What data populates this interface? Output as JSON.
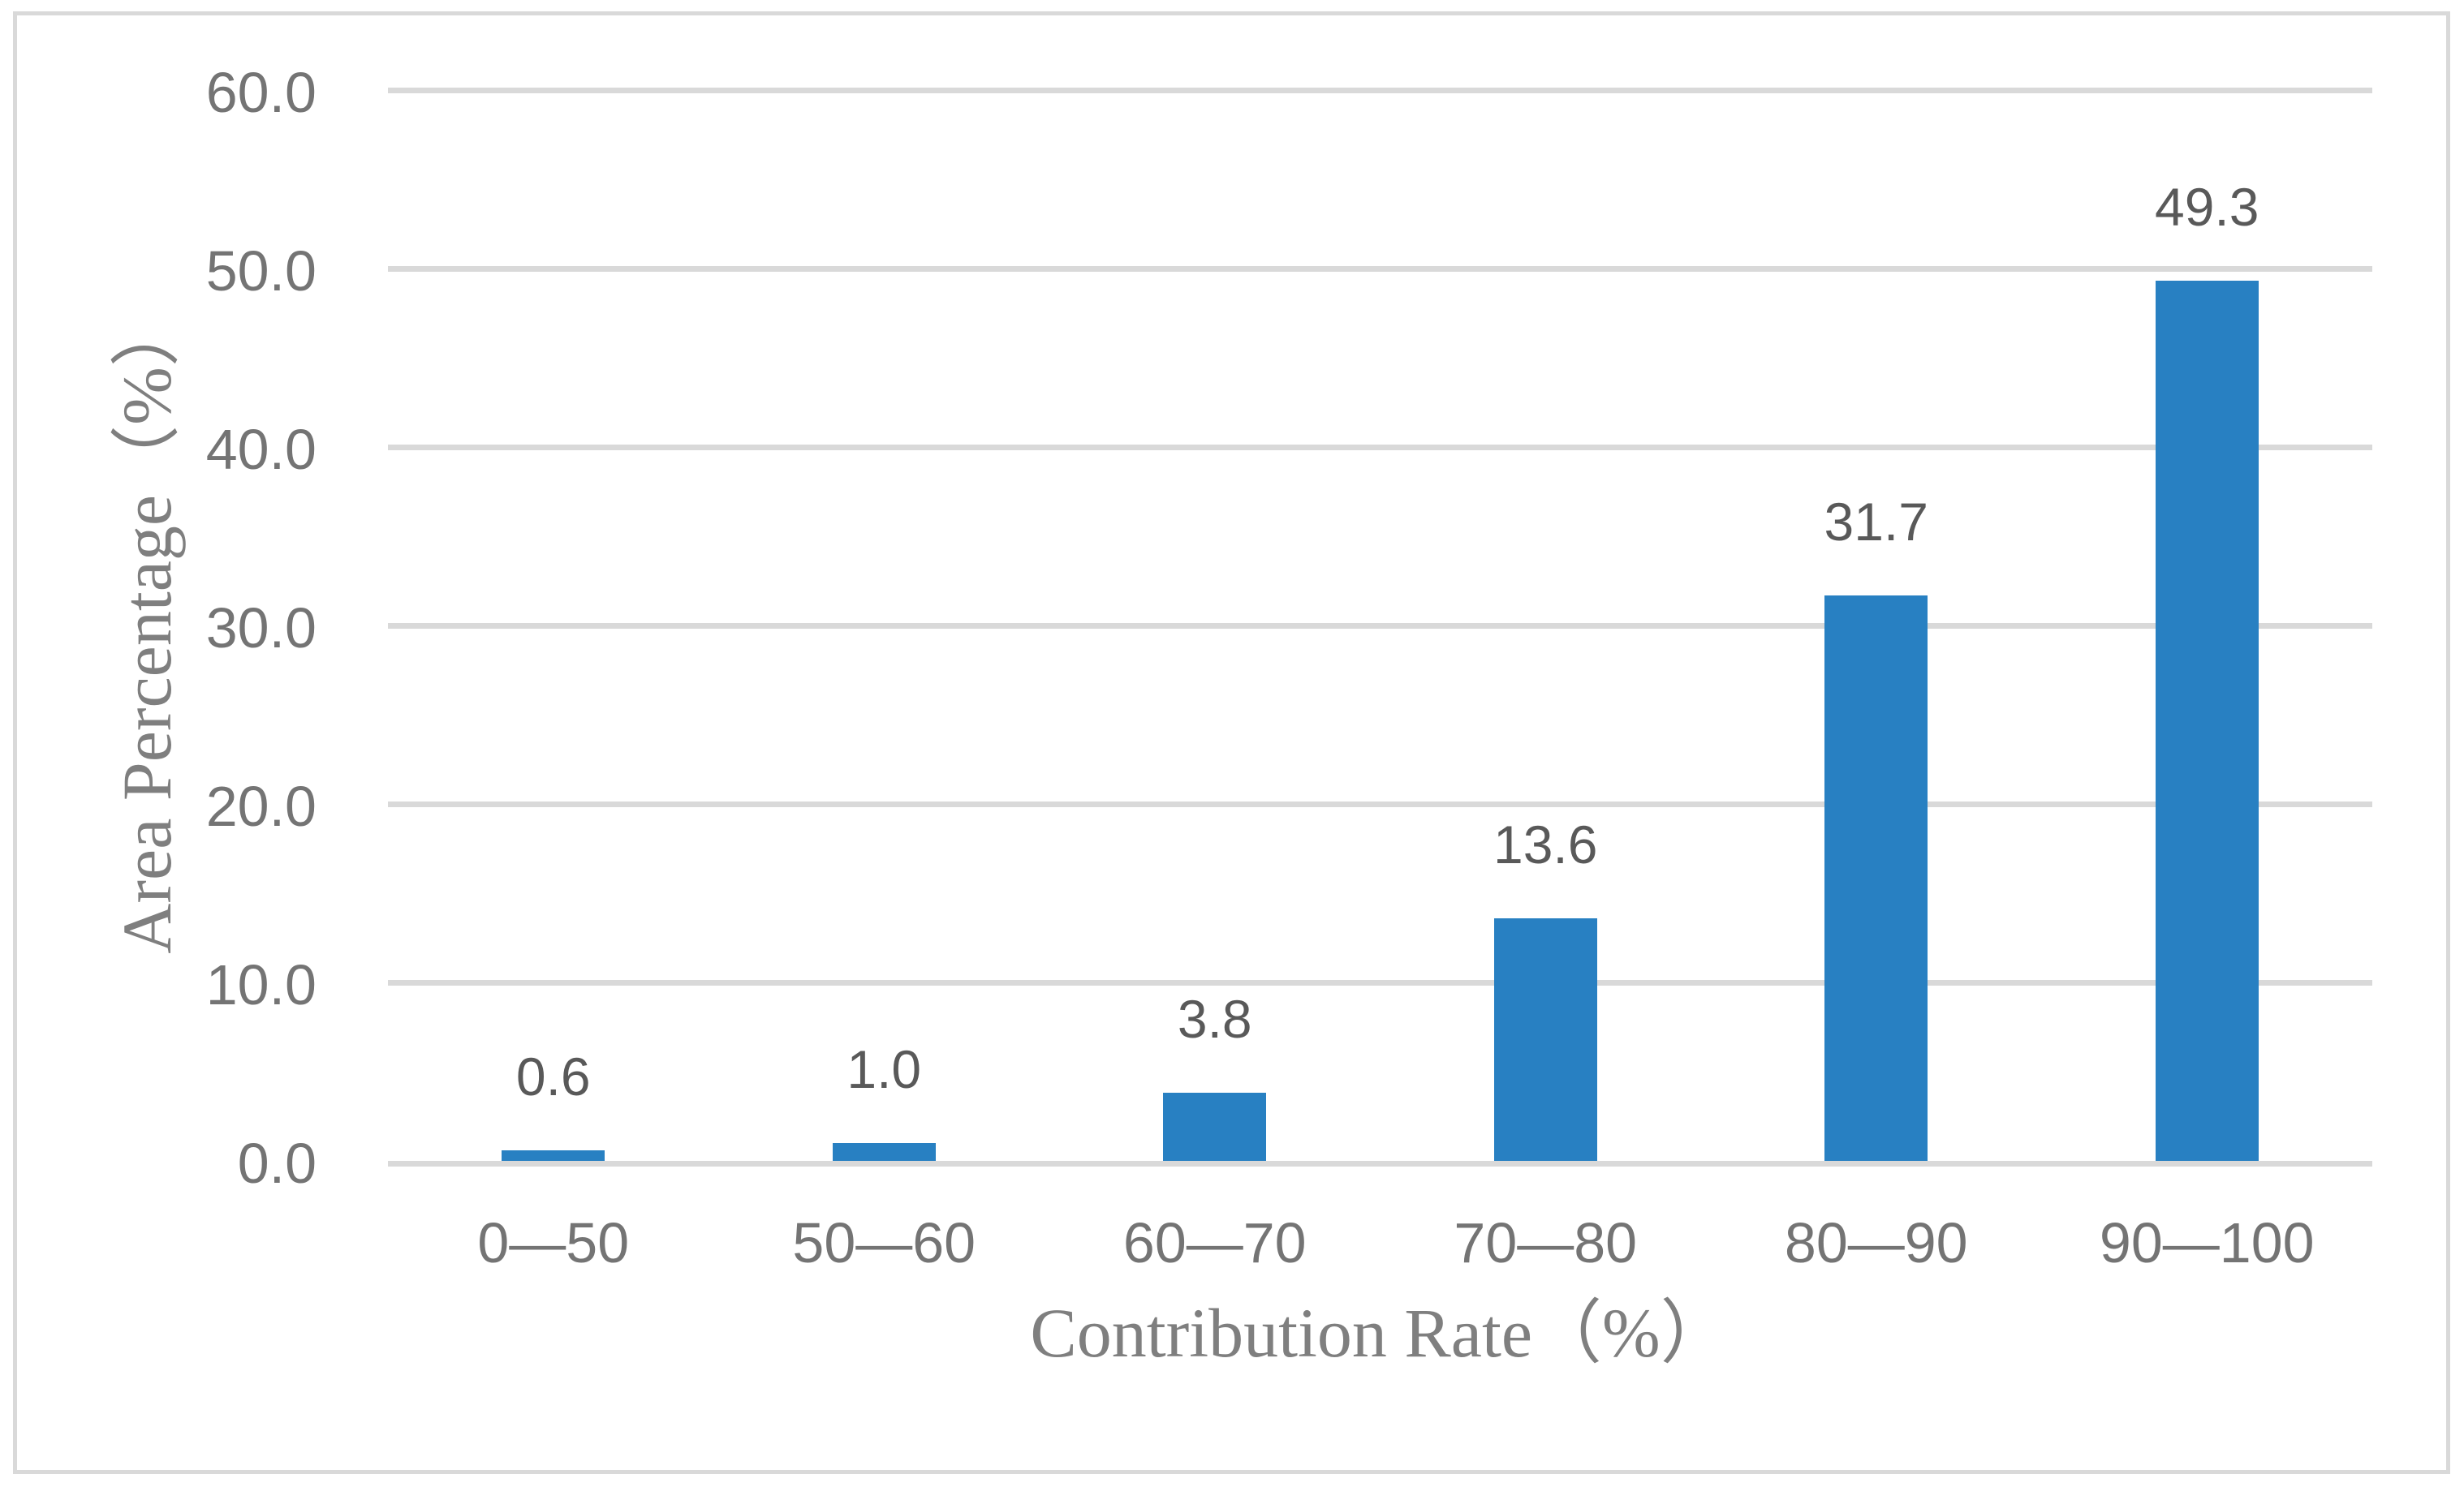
{
  "figure": {
    "background_color": "#ffffff",
    "border_color": "#d9d9d9"
  },
  "chart_data": {
    "type": "bar",
    "title": "",
    "categories": [
      "0—50",
      "50—60",
      "60—70",
      "70—80",
      "80—90",
      "90—100"
    ],
    "values": [
      0.6,
      1.0,
      3.8,
      13.6,
      31.7,
      49.3
    ],
    "data_labels": [
      "0.6",
      "1.0",
      "3.8",
      "13.6",
      "31.7",
      "49.3"
    ],
    "xlabel": "Contribution Rate（%）",
    "ylabel": "Area Percentage（%）",
    "ylim": [
      0,
      60
    ],
    "ytick_interval": 10,
    "ytick_labels": [
      "0.0",
      "10.0",
      "20.0",
      "30.0",
      "40.0",
      "50.0",
      "60.0"
    ],
    "grid": "horizontal",
    "legend_position": "none",
    "bar_color": "#2880c2",
    "gridline_color": "#d9d9d9",
    "tick_label_color": "#747474",
    "data_label_color": "#595959",
    "axis_title_color": "#7f7f7f"
  }
}
